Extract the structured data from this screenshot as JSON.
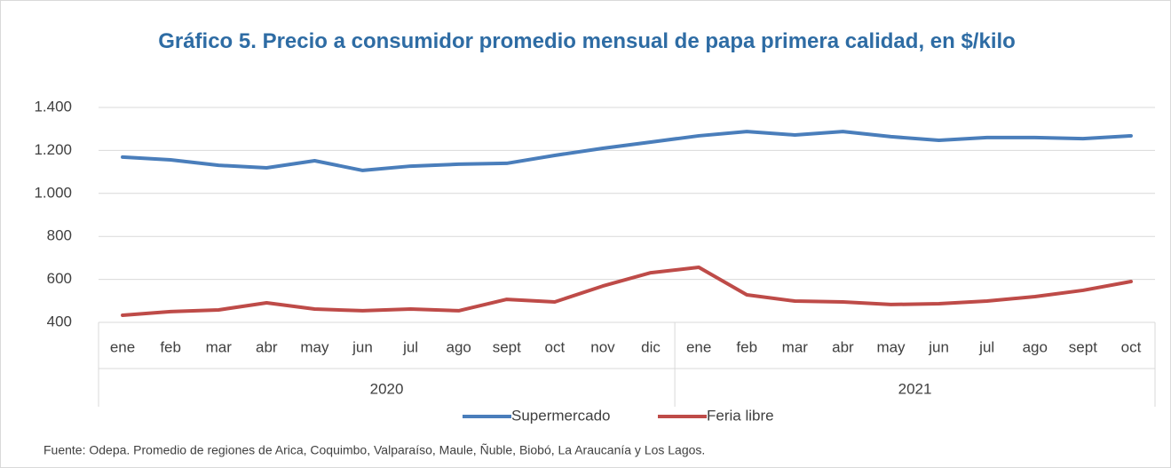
{
  "chart_data": {
    "type": "line",
    "title": "Gráfico 5. Precio a consumidor promedio mensual de papa primera calidad, en $/kilo",
    "category_groups": [
      {
        "name": "2020",
        "categories": [
          "ene",
          "feb",
          "mar",
          "abr",
          "may",
          "jun",
          "jul",
          "ago",
          "sept",
          "oct",
          "nov",
          "dic"
        ]
      },
      {
        "name": "2021",
        "categories": [
          "ene",
          "feb",
          "mar",
          "abr",
          "may",
          "jun",
          "jul",
          "ago",
          "sept",
          "oct"
        ]
      }
    ],
    "series": [
      {
        "name": "Supermercado",
        "color": "#4a7ebb",
        "values": [
          1169,
          1156,
          1131,
          1119,
          1152,
          1107,
          1127,
          1136,
          1140,
          1177,
          1210,
          1239,
          1268,
          1288,
          1272,
          1288,
          1264,
          1247,
          1260,
          1260,
          1255,
          1268
        ]
      },
      {
        "name": "Feria libre",
        "color": "#be4b48",
        "values": [
          433,
          450,
          458,
          491,
          462,
          454,
          462,
          454,
          507,
          495,
          569,
          631,
          656,
          528,
          499,
          495,
          483,
          487,
          499,
          520,
          549,
          590
        ]
      }
    ],
    "ylim": [
      400,
      1400
    ],
    "yticks": [
      400,
      600,
      800,
      {
        "value": 1000,
        "label": "1.000"
      },
      {
        "value": 1200,
        "label": "1.200"
      },
      {
        "value": 1400,
        "label": "1.400"
      }
    ],
    "grid": true,
    "legend": "bottom",
    "source": "Fuente: Odepa. Promedio de regiones de Arica, Coquimbo, Valparaíso, Maule, Ñuble, Biobó, La Araucanía y Los Lagos."
  }
}
